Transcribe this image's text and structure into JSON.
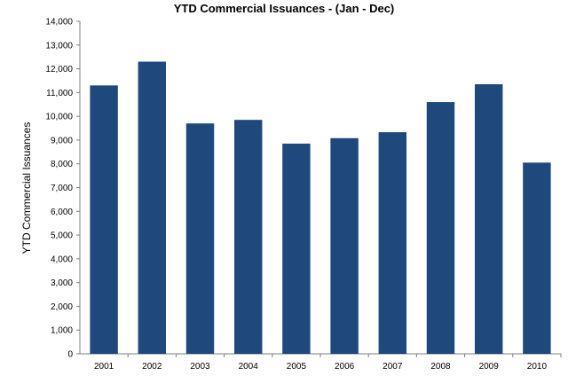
{
  "chart_data": {
    "type": "bar",
    "title": "YTD Commercial Issuances - (Jan - Dec)",
    "xlabel": "",
    "ylabel": "YTD Commercial Issuances",
    "categories": [
      "2001",
      "2002",
      "2003",
      "2004",
      "2005",
      "2006",
      "2007",
      "2008",
      "2009",
      "2010"
    ],
    "values": [
      11300,
      12300,
      9700,
      9850,
      8850,
      9080,
      9330,
      10600,
      11350,
      8050
    ],
    "ylim": [
      0,
      14000
    ],
    "yticks": [
      0,
      1000,
      2000,
      3000,
      4000,
      5000,
      6000,
      7000,
      8000,
      9000,
      10000,
      11000,
      12000,
      13000,
      14000
    ],
    "ytick_labels": [
      "0",
      "1,000",
      "2,000",
      "3,000",
      "4,000",
      "5,000",
      "6,000",
      "7,000",
      "8,000",
      "9,000",
      "10,000",
      "11,000",
      "12,000",
      "13,000",
      "14,000"
    ],
    "grid": false,
    "legend": "none",
    "bar_color": "#1F497D"
  }
}
